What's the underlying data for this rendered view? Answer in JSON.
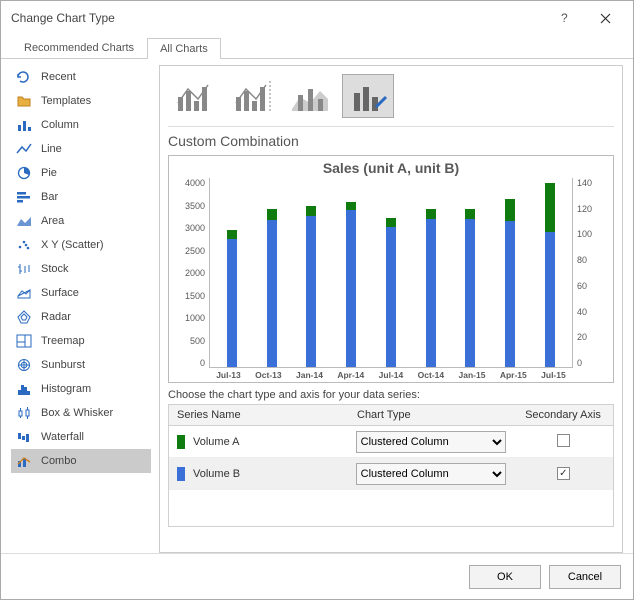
{
  "window": {
    "title": "Change Chart Type"
  },
  "tabs": {
    "recommended": "Recommended Charts",
    "all": "All Charts",
    "active": "all"
  },
  "sidebar": {
    "items": [
      {
        "label": "Recent",
        "icon": "recent"
      },
      {
        "label": "Templates",
        "icon": "templates"
      },
      {
        "label": "Column",
        "icon": "column"
      },
      {
        "label": "Line",
        "icon": "line"
      },
      {
        "label": "Pie",
        "icon": "pie"
      },
      {
        "label": "Bar",
        "icon": "bar"
      },
      {
        "label": "Area",
        "icon": "area"
      },
      {
        "label": "X Y (Scatter)",
        "icon": "scatter"
      },
      {
        "label": "Stock",
        "icon": "stock"
      },
      {
        "label": "Surface",
        "icon": "surface"
      },
      {
        "label": "Radar",
        "icon": "radar"
      },
      {
        "label": "Treemap",
        "icon": "treemap"
      },
      {
        "label": "Sunburst",
        "icon": "sunburst"
      },
      {
        "label": "Histogram",
        "icon": "histogram"
      },
      {
        "label": "Box & Whisker",
        "icon": "box"
      },
      {
        "label": "Waterfall",
        "icon": "waterfall"
      },
      {
        "label": "Combo",
        "icon": "combo"
      }
    ],
    "selected": 16
  },
  "section_title": "Custom Combination",
  "chart": {
    "title": "Sales (unit A, unit B)",
    "categories": [
      "Jul-13",
      "Oct-13",
      "Jan-14",
      "Apr-14",
      "Jul-14",
      "Oct-14",
      "Jan-15",
      "Apr-15",
      "Jul-15"
    ],
    "series_a": {
      "name": "Volume A",
      "color": "#107c10",
      "values": [
        2900,
        3350,
        3400,
        3500,
        3150,
        3350,
        3350,
        3550,
        3900
      ],
      "axis": "primary",
      "chart_type": "Clustered Column"
    },
    "series_b": {
      "name": "Volume B",
      "color": "#3a6fd8",
      "values": [
        95,
        109,
        112,
        116,
        104,
        110,
        110,
        108,
        100
      ],
      "axis": "secondary",
      "chart_type": "Clustered Column"
    },
    "primary_axis": {
      "min": 0,
      "max": 4000,
      "step": 500,
      "ticks": [
        "4000",
        "3500",
        "3000",
        "2500",
        "2000",
        "1500",
        "1000",
        "500",
        "0"
      ]
    },
    "secondary_axis": {
      "min": 0,
      "max": 140,
      "step": 20,
      "ticks": [
        "140",
        "120",
        "100",
        "80",
        "60",
        "40",
        "20",
        "0"
      ]
    },
    "background": "#ffffff",
    "tick_color": "#bbbbbb",
    "label_color": "#595959",
    "title_fontsize": 14,
    "label_fontsize": 9
  },
  "series_section": {
    "caption": "Choose the chart type and axis for your data series:",
    "headers": {
      "name": "Series Name",
      "type": "Chart Type",
      "axis": "Secondary Axis"
    },
    "rows": [
      {
        "swatch": "#107c10",
        "name": "Volume A",
        "type": "Clustered Column",
        "secondary": false
      },
      {
        "swatch": "#3a6fd8",
        "name": "Volume B",
        "type": "Clustered Column",
        "secondary": true
      }
    ]
  },
  "footer": {
    "ok": "OK",
    "cancel": "Cancel"
  }
}
